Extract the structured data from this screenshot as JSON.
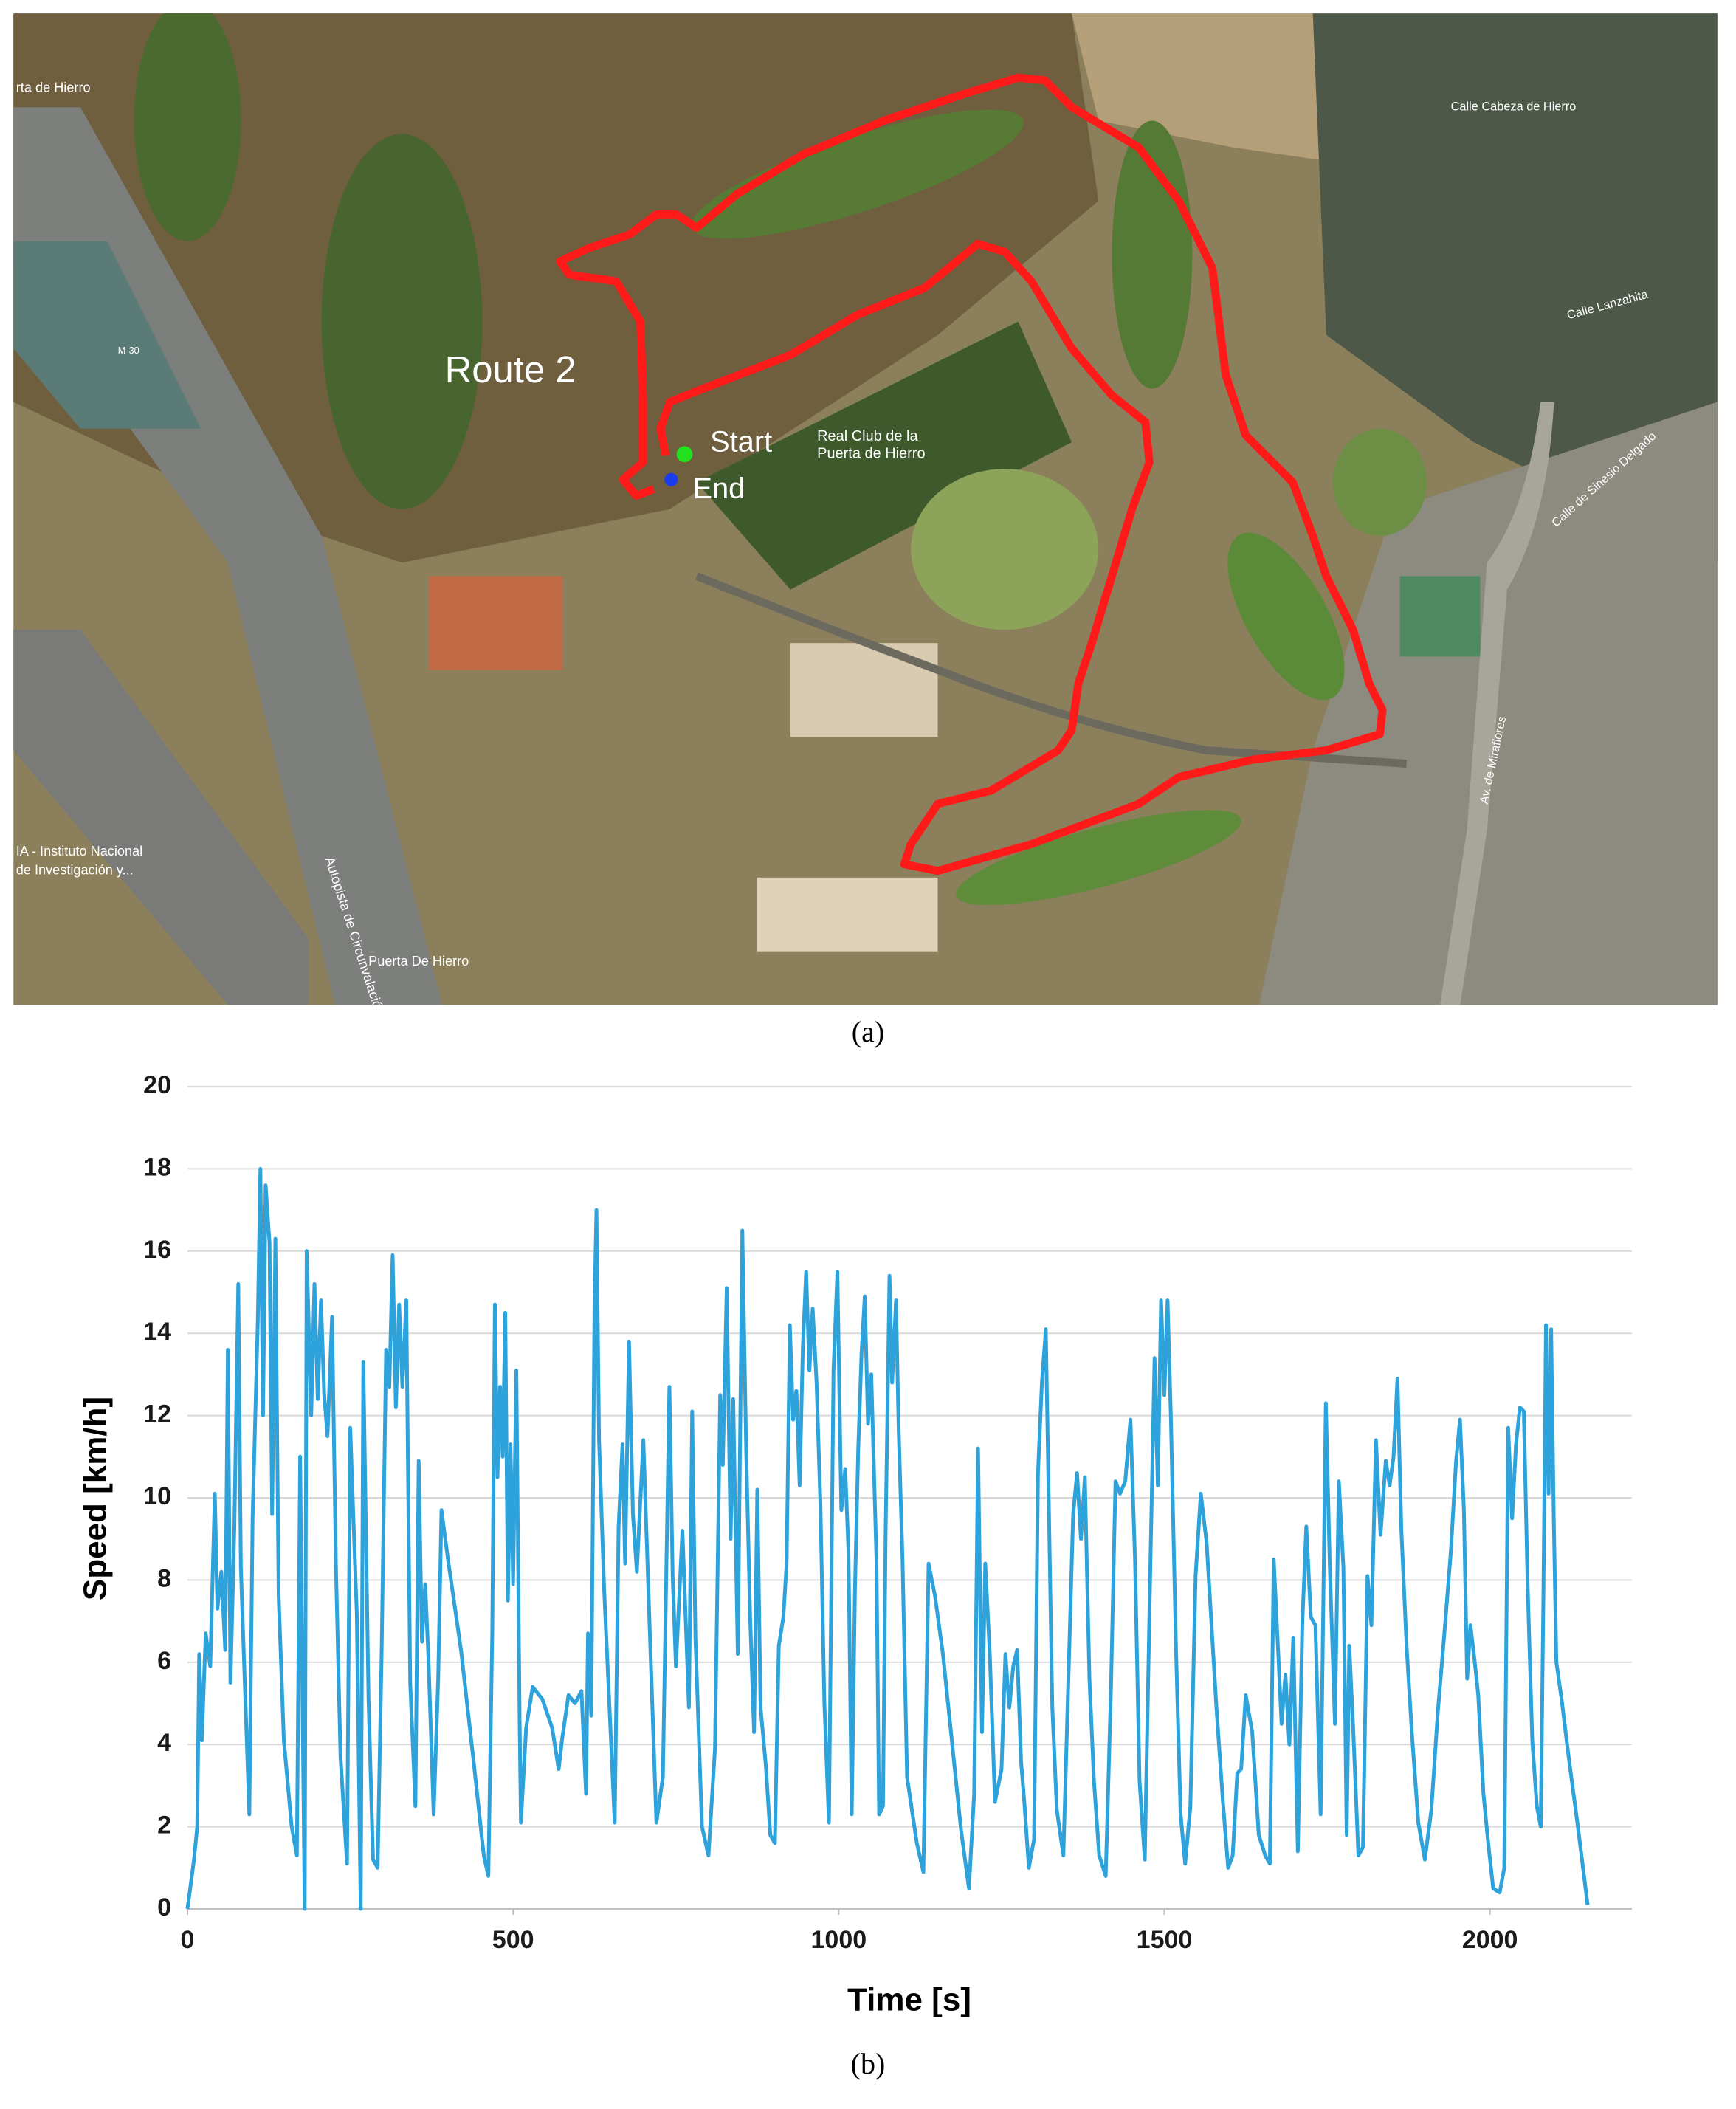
{
  "map": {
    "labels": [
      "Route 2",
      "Start",
      "End",
      "Real Club de la",
      "Puerta de Hierro",
      "Calle Cabeza de Hierro",
      "Puerta De Hierro",
      "M-30",
      "Calle de Sinesio Delgado",
      "Av. de Miraflores",
      "IA - Instituto Nacional",
      "de Investigación y...",
      "rta de Hierro",
      "Calle Lanzahita",
      "Autopista de Circunvalación"
    ]
  },
  "captions": {
    "a": "(a)",
    "b": "(b)"
  },
  "chart_data": {
    "type": "line",
    "x_label": "Time [s]",
    "y_label": "Speed [km/h]",
    "xlim": [
      0,
      2218
    ],
    "xticks": [
      0,
      500,
      1000,
      1500,
      2000
    ],
    "ylim": [
      0,
      20
    ],
    "yticks": [
      0,
      2,
      4,
      6,
      8,
      10,
      12,
      14,
      16,
      18,
      20
    ],
    "grid": true,
    "color": "#2ea2db",
    "x": [
      0,
      10,
      15,
      18,
      22,
      28,
      35,
      42,
      46,
      52,
      58,
      62,
      66,
      72,
      78,
      82,
      88,
      95,
      100,
      108,
      112,
      116,
      120,
      126,
      130,
      135,
      140,
      148,
      160,
      168,
      173,
      176,
      180,
      183,
      190,
      195,
      200,
      205,
      210,
      215,
      222,
      228,
      235,
      245,
      250,
      255,
      260,
      266,
      270,
      278,
      285,
      292,
      298,
      305,
      310,
      315,
      320,
      325,
      330,
      336,
      342,
      350,
      355,
      360,
      365,
      370,
      378,
      385,
      390,
      400,
      420,
      440,
      455,
      462,
      468,
      472,
      476,
      480,
      484,
      488,
      492,
      496,
      500,
      505,
      510,
      512,
      520,
      530,
      545,
      560,
      570,
      575,
      585,
      595,
      605,
      612,
      615,
      620,
      625,
      628,
      632,
      640,
      652,
      656,
      662,
      668,
      672,
      678,
      684,
      690,
      700,
      710,
      720,
      730,
      740,
      745,
      750,
      760,
      770,
      775,
      780,
      790,
      800,
      810,
      818,
      822,
      828,
      834,
      838,
      845,
      852,
      858,
      864,
      870,
      875,
      880,
      888,
      895,
      902,
      908,
      915,
      920,
      925,
      930,
      935,
      940,
      945,
      950,
      955,
      960,
      966,
      972,
      978,
      985,
      992,
      998,
      1004,
      1010,
      1015,
      1020,
      1025,
      1030,
      1035,
      1040,
      1045,
      1050,
      1058,
      1062,
      1068,
      1072,
      1078,
      1082,
      1088,
      1092,
      1098,
      1105,
      1120,
      1130,
      1138,
      1148,
      1160,
      1175,
      1188,
      1200,
      1208,
      1214,
      1220,
      1225,
      1232,
      1240,
      1250,
      1256,
      1262,
      1268,
      1274,
      1280,
      1285,
      1292,
      1300,
      1306,
      1312,
      1318,
      1322,
      1328,
      1335,
      1345,
      1352,
      1360,
      1366,
      1372,
      1378,
      1385,
      1392,
      1400,
      1410,
      1418,
      1425,
      1432,
      1440,
      1448,
      1455,
      1462,
      1470,
      1478,
      1485,
      1490,
      1495,
      1500,
      1505,
      1510,
      1518,
      1525,
      1532,
      1540,
      1548,
      1556,
      1565,
      1580,
      1590,
      1598,
      1605,
      1612,
      1618,
      1625,
      1635,
      1645,
      1655,
      1662,
      1668,
      1675,
      1680,
      1686,
      1692,
      1698,
      1705,
      1712,
      1718,
      1725,
      1732,
      1740,
      1748,
      1754,
      1762,
      1768,
      1775,
      1780,
      1784,
      1790,
      1798,
      1805,
      1812,
      1818,
      1825,
      1832,
      1840,
      1846,
      1852,
      1858,
      1864,
      1872,
      1880,
      1890,
      1900,
      1910,
      1920,
      1930,
      1940,
      1948,
      1954,
      1960,
      1965,
      1970,
      1976,
      1982,
      1990,
      1998,
      2005,
      2015,
      2022,
      2028,
      2034,
      2040,
      2046,
      2052,
      2058,
      2065,
      2072,
      2078,
      2082,
      2086,
      2090,
      2094,
      2098,
      2102,
      2110,
      2120,
      2135,
      2150
    ],
    "values": [
      0,
      1.2,
      2,
      6.2,
      4.1,
      6.7,
      5.9,
      10.1,
      7.3,
      8.2,
      6.3,
      13.6,
      5.5,
      9.3,
      15.2,
      8.3,
      5.5,
      2.3,
      9.5,
      14.3,
      18,
      12,
      17.6,
      16.2,
      9.6,
      16.3,
      7.6,
      4.1,
      2,
      1.3,
      11,
      6,
      0,
      16,
      12,
      15.2,
      12.4,
      14.8,
      12.5,
      11.5,
      14.4,
      8.3,
      3.7,
      1.1,
      11.7,
      9.4,
      7.2,
      0,
      13.3,
      5.1,
      1.2,
      1,
      6.1,
      13.6,
      12.7,
      15.9,
      12.2,
      14.7,
      12.7,
      14.8,
      5.5,
      2.5,
      10.9,
      6.5,
      7.9,
      6.1,
      2.3,
      5.6,
      9.7,
      8.5,
      6.3,
      3.5,
      1.3,
      0.8,
      6.7,
      14.7,
      10.5,
      12.7,
      11,
      14.5,
      7.5,
      11.3,
      7.9,
      13.1,
      4.6,
      2.1,
      4.4,
      5.4,
      5.1,
      4.4,
      3.4,
      4.1,
      5.2,
      5,
      5.3,
      2.8,
      6.7,
      4.7,
      14.7,
      17,
      11.4,
      7.7,
      3.5,
      2.1,
      9.3,
      11.3,
      8.4,
      13.8,
      9.6,
      8.2,
      11.4,
      6.7,
      2.1,
      3.2,
      12.7,
      8.1,
      5.9,
      9.2,
      4.9,
      12.1,
      6.6,
      2,
      1.3,
      3.9,
      12.5,
      10.8,
      15.1,
      9,
      12.4,
      6.2,
      16.5,
      11.1,
      7.1,
      4.3,
      10.2,
      4.9,
      3.5,
      1.8,
      1.6,
      6.4,
      7.1,
      8.4,
      14.2,
      11.9,
      12.6,
      10.3,
      13.7,
      15.5,
      13.1,
      14.6,
      12.8,
      9.8,
      5,
      2.1,
      13.1,
      15.5,
      9.7,
      10.7,
      8.7,
      2.3,
      7.8,
      11.2,
      13.5,
      14.9,
      11.8,
      13,
      8.5,
      2.3,
      2.5,
      9.1,
      15.4,
      12.8,
      14.8,
      11.7,
      8.5,
      3.2,
      1.6,
      0.9,
      8.4,
      7.6,
      6.2,
      3.9,
      1.9,
      0.5,
      2.8,
      11.2,
      4.3,
      8.4,
      6.2,
      2.6,
      3.4,
      6.2,
      4.9,
      5.9,
      6.3,
      3.6,
      2.6,
      1,
      1.7,
      10.6,
      12.8,
      14.1,
      10.4,
      4.9,
      2.4,
      1.3,
      5.2,
      9.6,
      10.6,
      9,
      10.5,
      5.6,
      3.1,
      1.3,
      0.8,
      5.3,
      10.4,
      10.1,
      10.4,
      11.9,
      8.5,
      3.1,
      1.2,
      7.9,
      13.4,
      10.3,
      14.8,
      12.5,
      14.8,
      12,
      6.3,
      2.3,
      1.1,
      2.5,
      8.1,
      10.1,
      8.9,
      4.9,
      2.6,
      1,
      1.3,
      3.3,
      3.4,
      5.2,
      4.3,
      1.8,
      1.3,
      1.1,
      8.5,
      6.2,
      4.5,
      5.7,
      4,
      6.6,
      1.4,
      7,
      9.3,
      7.1,
      6.9,
      2.3,
      12.3,
      8.4,
      4.5,
      10.4,
      8.3,
      1.8,
      6.4,
      4.4,
      1.3,
      1.5,
      8.1,
      6.9,
      11.4,
      9.1,
      10.9,
      10.3,
      11,
      12.9,
      9.2,
      6.4,
      4.3,
      2.1,
      1.2,
      2.4,
      4.8,
      6.7,
      8.7,
      10.9,
      11.9,
      9.7,
      5.6,
      6.9,
      6.1,
      5.2,
      2.8,
      1.5,
      0.5,
      0.4,
      1,
      11.7,
      9.5,
      11.3,
      12.2,
      12.1,
      7.8,
      4.1,
      2.5,
      2,
      7.5,
      14.2,
      10.1,
      14.1,
      9.5,
      6,
      5.1,
      3.8,
      2,
      0.1
    ]
  }
}
